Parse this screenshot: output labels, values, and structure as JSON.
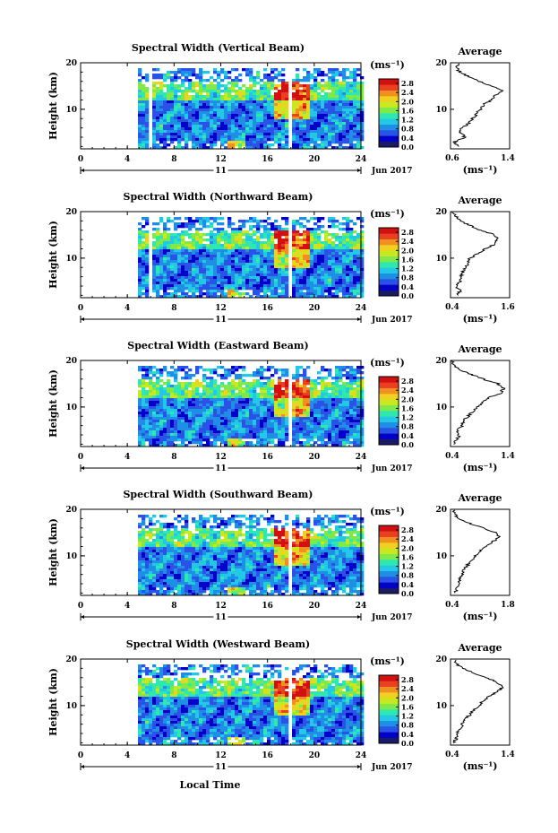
{
  "figure": {
    "xlabel": "Local Time",
    "date_label": "Jun 2017",
    "date_day": "11",
    "ylabel": "Height (km)",
    "colorbar_unit": "(ms⁻¹)",
    "colorbar_ticks": [
      "2.8",
      "2.4",
      "2.0",
      "1.6",
      "1.2",
      "0.8",
      "0.4",
      "0.0"
    ],
    "colormap": [
      "#1a1a66",
      "#0000c8",
      "#2a52e6",
      "#1f8fe6",
      "#22c8e6",
      "#2ee8b0",
      "#7fe84a",
      "#c8e820",
      "#f0d020",
      "#f09020",
      "#e84020",
      "#d21010"
    ],
    "average_title": "Average",
    "average_unit": "(ms⁻¹)"
  },
  "chart_data": [
    {
      "type": "heatmap",
      "title": "Spectral Width (Vertical Beam)",
      "xlabel": "Local Time",
      "ylabel": "Height (km)",
      "x_ticks": [
        0,
        4,
        8,
        12,
        16,
        20,
        24
      ],
      "xlim": [
        0,
        24
      ],
      "y_ticks": [
        10,
        20
      ],
      "ylim": [
        1.5,
        20
      ],
      "data_gaps_hours": [
        [
          0,
          4.9
        ],
        [
          5.7,
          5.9
        ],
        [
          10.5,
          10.7
        ],
        [
          17.7,
          17.9
        ],
        [
          20.3,
          20.5
        ]
      ],
      "colorbar": {
        "min": 0.0,
        "max": 3.0,
        "ticks": [
          0.0,
          0.4,
          0.8,
          1.2,
          1.6,
          2.0,
          2.4,
          2.8
        ]
      },
      "average": {
        "xlim": [
          0.6,
          1.4
        ],
        "x_ticks": [
          "0.6",
          "1.4"
        ],
        "y_ticks": [
          "10",
          "20"
        ],
        "profile_height_km": [
          2,
          3,
          4,
          5,
          6,
          7,
          8,
          9,
          10,
          11,
          12,
          13,
          14,
          15,
          16,
          17,
          18,
          19,
          20
        ],
        "profile_width_ms": [
          0.7,
          0.65,
          0.8,
          0.72,
          0.75,
          0.85,
          0.9,
          0.95,
          1.0,
          1.05,
          1.15,
          1.2,
          1.3,
          1.15,
          1.0,
          0.85,
          0.72,
          0.68,
          0.7
        ]
      }
    },
    {
      "type": "heatmap",
      "title": "Spectral Width (Northward Beam)",
      "xlabel": "Local Time",
      "ylabel": "Height (km)",
      "x_ticks": [
        0,
        4,
        8,
        12,
        16,
        20,
        24
      ],
      "xlim": [
        0,
        24
      ],
      "y_ticks": [
        10,
        20
      ],
      "ylim": [
        1.5,
        20
      ],
      "data_gaps_hours": [
        [
          0,
          4.9
        ],
        [
          5.7,
          5.9
        ],
        [
          10.5,
          10.7
        ],
        [
          17.7,
          17.9
        ],
        [
          20.3,
          20.5
        ]
      ],
      "colorbar": {
        "min": 0.0,
        "max": 3.0,
        "ticks": [
          0.0,
          0.4,
          0.8,
          1.2,
          1.6,
          2.0,
          2.4,
          2.8
        ]
      },
      "average": {
        "xlim": [
          0.4,
          1.6
        ],
        "x_ticks": [
          "0.4",
          "1.6"
        ],
        "y_ticks": [
          "10",
          "20"
        ],
        "profile_height_km": [
          2,
          3,
          4,
          5,
          6,
          7,
          8,
          9,
          10,
          11,
          12,
          13,
          14,
          15,
          16,
          17,
          18,
          19,
          20
        ],
        "profile_width_ms": [
          0.55,
          0.6,
          0.5,
          0.6,
          0.62,
          0.65,
          0.7,
          0.75,
          0.8,
          0.95,
          1.1,
          1.3,
          1.35,
          1.3,
          1.0,
          0.8,
          0.6,
          0.5,
          0.45
        ]
      }
    },
    {
      "type": "heatmap",
      "title": "Spectral Width (Eastward Beam)",
      "xlabel": "Local Time",
      "ylabel": "Height (km)",
      "x_ticks": [
        0,
        4,
        8,
        12,
        16,
        20,
        24
      ],
      "xlim": [
        0,
        24
      ],
      "y_ticks": [
        10,
        20
      ],
      "ylim": [
        1.5,
        20
      ],
      "data_gaps_hours": [
        [
          0,
          4.9
        ],
        [
          10.5,
          10.7
        ],
        [
          17.7,
          17.9
        ],
        [
          20.3,
          20.5
        ]
      ],
      "colorbar": {
        "min": 0.0,
        "max": 3.0,
        "ticks": [
          0.0,
          0.4,
          0.8,
          1.2,
          1.6,
          2.0,
          2.4,
          2.8
        ]
      },
      "average": {
        "xlim": [
          0.4,
          1.4
        ],
        "x_ticks": [
          "0.4",
          "1.4"
        ],
        "y_ticks": [
          "10",
          "20"
        ],
        "profile_height_km": [
          2,
          3,
          4,
          5,
          6,
          7,
          8,
          9,
          10,
          11,
          12,
          13,
          14,
          15,
          16,
          17,
          18,
          19,
          20
        ],
        "profile_width_ms": [
          0.45,
          0.5,
          0.55,
          0.5,
          0.6,
          0.62,
          0.7,
          0.78,
          0.85,
          0.95,
          1.05,
          1.25,
          1.3,
          1.2,
          0.95,
          0.75,
          0.55,
          0.45,
          0.42
        ]
      }
    },
    {
      "type": "heatmap",
      "title": "Spectral Width (Southward Beam)",
      "xlabel": "Local Time",
      "ylabel": "Height (km)",
      "x_ticks": [
        0,
        4,
        8,
        12,
        16,
        20,
        24
      ],
      "xlim": [
        0,
        24
      ],
      "y_ticks": [
        10,
        20
      ],
      "ylim": [
        1.5,
        20
      ],
      "data_gaps_hours": [
        [
          0,
          4.9
        ],
        [
          10.5,
          10.7
        ],
        [
          17.7,
          17.9
        ],
        [
          20.3,
          20.5
        ]
      ],
      "colorbar": {
        "min": 0.0,
        "max": 3.0,
        "ticks": [
          0.0,
          0.4,
          0.8,
          1.2,
          1.6,
          2.0,
          2.4,
          2.8
        ]
      },
      "average": {
        "xlim": [
          0.4,
          1.8
        ],
        "x_ticks": [
          "0.4",
          "1.8"
        ],
        "y_ticks": [
          "10",
          "20"
        ],
        "profile_height_km": [
          2,
          3,
          4,
          5,
          6,
          7,
          8,
          9,
          10,
          11,
          12,
          13,
          14,
          15,
          16,
          17,
          18,
          19,
          20
        ],
        "profile_width_ms": [
          0.5,
          0.55,
          0.6,
          0.62,
          0.7,
          0.72,
          0.8,
          0.9,
          1.0,
          1.1,
          1.25,
          1.4,
          1.55,
          1.45,
          1.15,
          0.85,
          0.6,
          0.5,
          0.48
        ]
      }
    },
    {
      "type": "heatmap",
      "title": "Spectral Width (Westward Beam)",
      "xlabel": "Local Time",
      "ylabel": "Height (km)",
      "x_ticks": [
        0,
        4,
        8,
        12,
        16,
        20,
        24
      ],
      "xlim": [
        0,
        24
      ],
      "y_ticks": [
        10,
        20
      ],
      "ylim": [
        1.5,
        20
      ],
      "data_gaps_hours": [
        [
          0,
          4.9
        ],
        [
          10.5,
          10.7
        ],
        [
          17.7,
          17.9
        ],
        [
          20.3,
          20.5
        ]
      ],
      "colorbar": {
        "min": 0.0,
        "max": 3.0,
        "ticks": [
          0.0,
          0.4,
          0.8,
          1.2,
          1.6,
          2.0,
          2.4,
          2.8
        ]
      },
      "average": {
        "xlim": [
          0.4,
          1.4
        ],
        "x_ticks": [
          "0.4",
          "1.4"
        ],
        "y_ticks": [
          "10",
          "20"
        ],
        "profile_height_km": [
          2,
          3,
          4,
          5,
          6,
          7,
          8,
          9,
          10,
          11,
          12,
          13,
          14,
          15,
          16,
          17,
          18,
          19,
          20
        ],
        "profile_width_ms": [
          0.45,
          0.5,
          0.52,
          0.55,
          0.6,
          0.65,
          0.72,
          0.8,
          0.88,
          0.95,
          1.05,
          1.2,
          1.28,
          1.2,
          1.0,
          0.8,
          0.6,
          0.5,
          0.48
        ]
      }
    }
  ]
}
